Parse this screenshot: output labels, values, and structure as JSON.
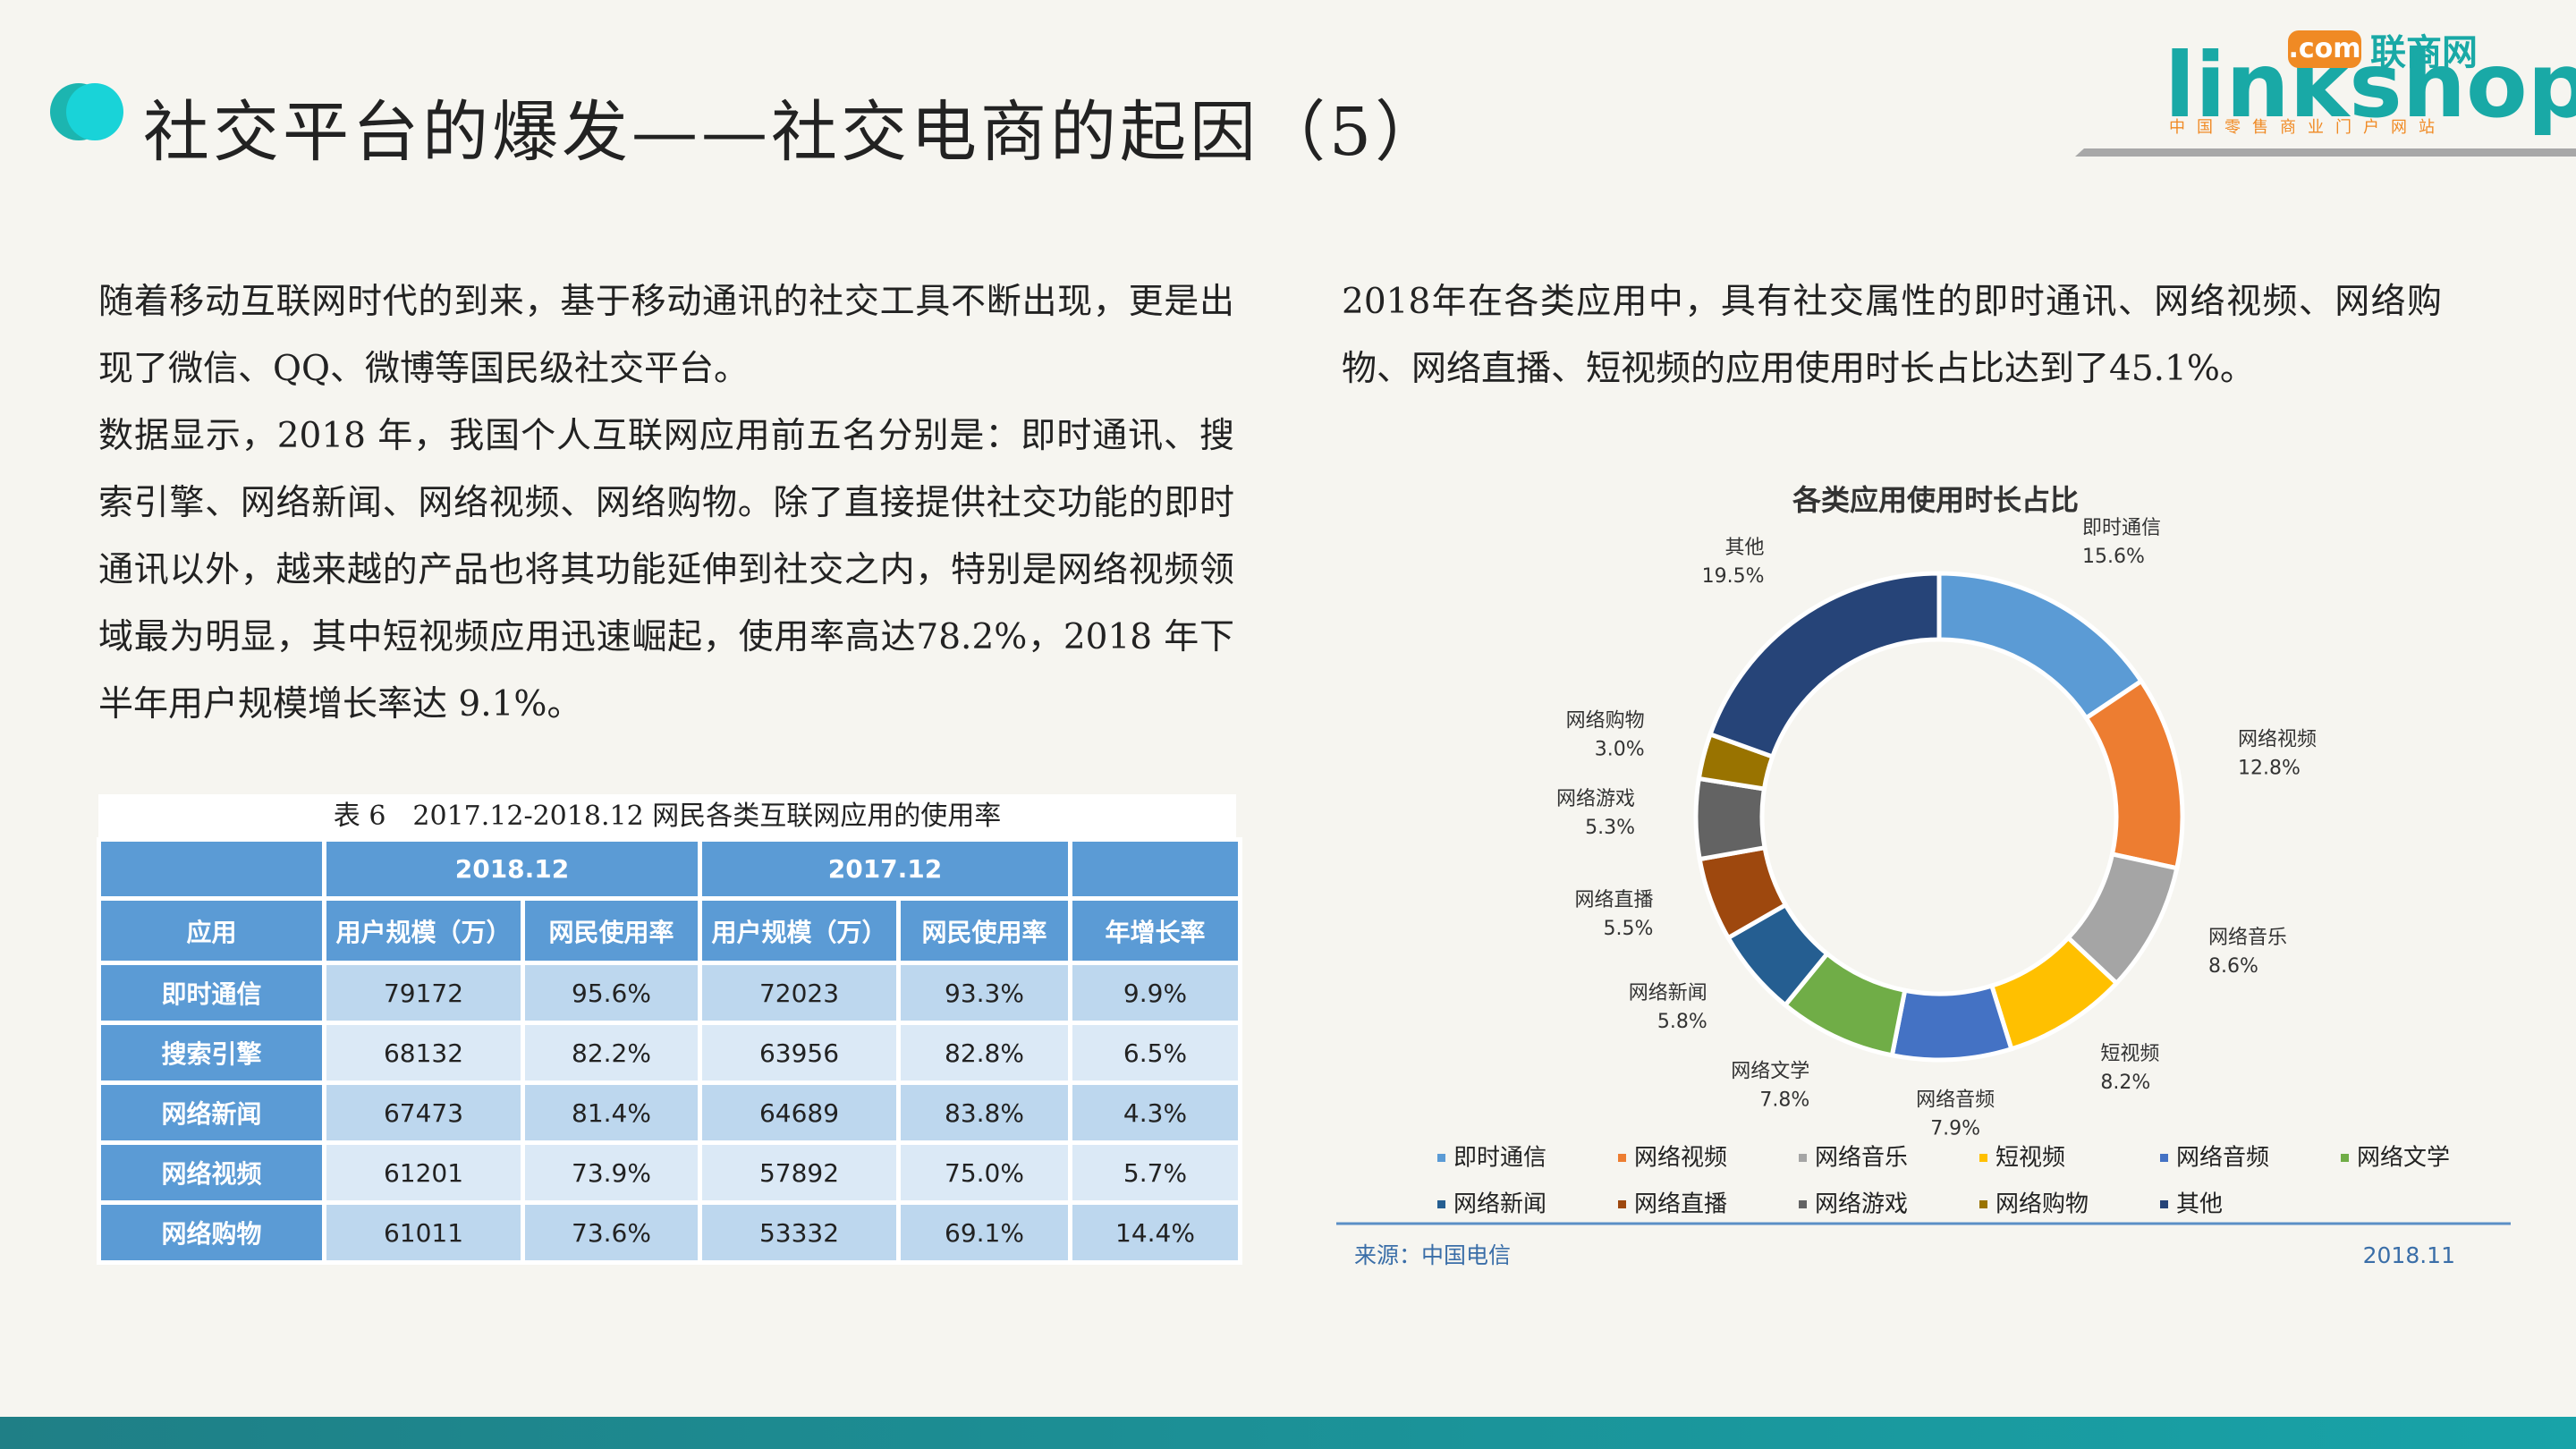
{
  "header": {
    "title": "社交平台的爆发——社交电商的起因（5）"
  },
  "logo": {
    "name": "linkshop",
    "domain": ".com",
    "cn": "联商网",
    "slogan": "中国零售商业门户网站"
  },
  "left_paragraphs": [
    "随着移动互联网时代的到来，基于移动通讯的社交工具不断出现，更是出现了微信、QQ、微博等国民级社交平台。",
    "数据显示，2018 年，我国个人互联网应用前五名分别是：即时通讯、搜索引擎、网络新闻、网络视频、网络购物。除了直接提供社交功能的即时通讯以外，越来越的产品也将其功能延伸到社交之内，特别是网络视频领域最为明显，其中短视频应用迅速崛起，使用率高达78.2%，2018 年下半年用户规模增长率达 9.1%。"
  ],
  "right_paragraph": "2018年在各类应用中，具有社交属性的即时通讯、网络视频、网络购物、网络直播、短视频的应用使用时长占比达到了45.1%。",
  "table": {
    "caption": "表 6　2017.12-2018.12 网民各类互联网应用的使用率",
    "header_top": [
      "2018.12",
      "2017.12"
    ],
    "header": [
      "应用",
      "用户规模（万）",
      "网民使用率",
      "用户规模（万）",
      "网民使用率",
      "年增长率"
    ],
    "rows": [
      [
        "即时通信",
        "79172",
        "95.6%",
        "72023",
        "93.3%",
        "9.9%"
      ],
      [
        "搜索引擎",
        "68132",
        "82.2%",
        "63956",
        "82.8%",
        "6.5%"
      ],
      [
        "网络新闻",
        "67473",
        "81.4%",
        "64689",
        "83.8%",
        "4.3%"
      ],
      [
        "网络视频",
        "61201",
        "73.9%",
        "57892",
        "75.0%",
        "5.7%"
      ],
      [
        "网络购物",
        "61011",
        "73.6%",
        "53332",
        "69.1%",
        "14.4%"
      ]
    ]
  },
  "chart_data": {
    "type": "pie",
    "title": "各类应用使用时长占比",
    "categories": [
      "即时通信",
      "网络视频",
      "网络音乐",
      "短视频",
      "网络音频",
      "网络文学",
      "网络新闻",
      "网络直播",
      "网络游戏",
      "网络购物",
      "其他"
    ],
    "values": [
      15.6,
      12.8,
      8.6,
      8.2,
      7.9,
      7.8,
      5.8,
      5.5,
      5.3,
      3.0,
      19.5
    ],
    "value_labels": [
      "15.6%",
      "12.8%",
      "8.6%",
      "8.2%",
      "7.9%",
      "7.8%",
      "5.8%",
      "5.5%",
      "5.3%",
      "3.0%",
      "19.5%"
    ],
    "colors": [
      "#5b9bd5",
      "#ed7d31",
      "#a5a5a5",
      "#ffc000",
      "#4472c4",
      "#70ad47",
      "#255e91",
      "#9e480e",
      "#636363",
      "#997300",
      "#264478"
    ],
    "donut": true
  },
  "source": "来源：中国电信",
  "date": "2018.11"
}
